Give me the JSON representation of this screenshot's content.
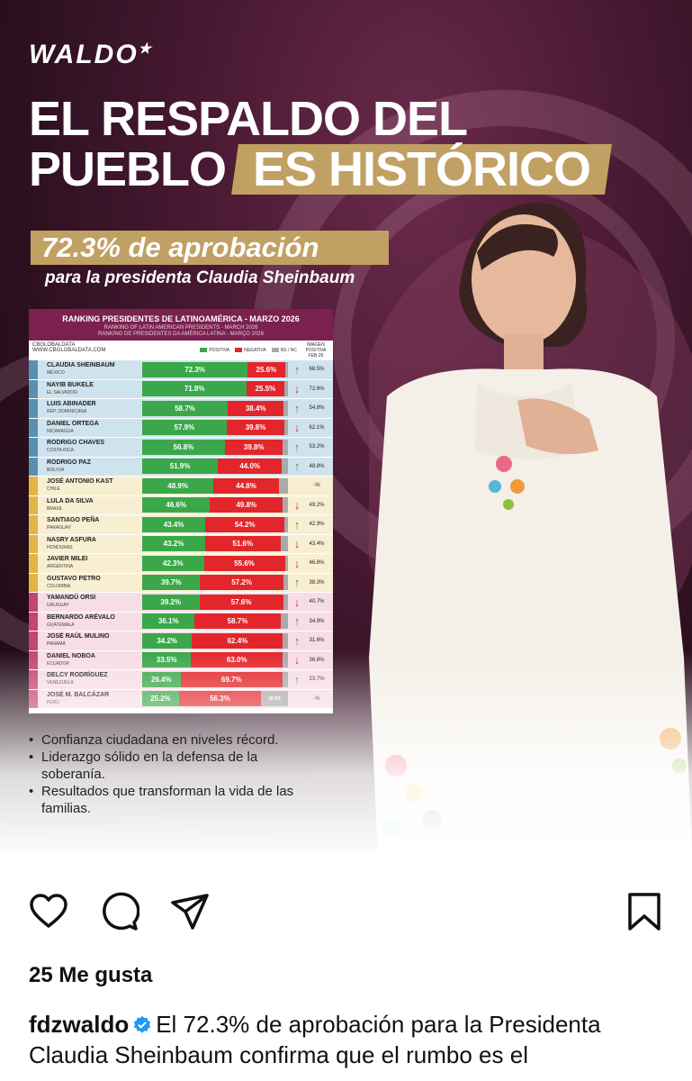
{
  "post": {
    "logo_main": "WALDO",
    "logo_star": "★",
    "headline_line1": "EL RESPALDO DEL",
    "headline_line2a": "PUEBLO",
    "headline_line2b": "ES HISTÓRICO",
    "approval": "72.3% de aprobación",
    "subtitle": "para la presidenta Claudia Sheinbaum"
  },
  "table": {
    "title": "RANKING PRESIDENTES DE LATINOAMÉRICA - MARZO 2026",
    "sub1": "RANKING OF LATIN AMERICAN PRESIDENTS - MARCH 2026",
    "sub2": "RANKING DE PRESIDENTES DA AMÉRICA LATINA - MARÇO 2026",
    "source1": "CBGLOBALDATA",
    "source2": "WWW.CBGLOBALDATA.COM",
    "legend_pos": "POSITIVA",
    "legend_neg": "NEGATIVA",
    "legend_ns": "NS / NC",
    "img_header": "IMAGEN POSITIVA FEB-26",
    "colors": {
      "positive": "#3aa84a",
      "negative": "#e3262b",
      "ns": "#a9a9a9",
      "header": "#7b2150"
    },
    "rows": [
      {
        "name": "CLAUDIA SHEINBAUM",
        "country": "MÉXICO",
        "pos": 72.3,
        "pos_label": "72.3%",
        "neg": 25.6,
        "neg_label": "25.6%",
        "ns": 2.1,
        "trend": "up",
        "prev": "68.5%",
        "group": "best"
      },
      {
        "name": "NAYIB BUKELE",
        "country": "EL SALVADOR",
        "pos": 71.8,
        "pos_label": "71.8%",
        "neg": 25.5,
        "neg_label": "25.5%",
        "ns": 2.7,
        "trend": "down",
        "prev": "72.6%",
        "group": "best"
      },
      {
        "name": "LUIS ABINADER",
        "country": "REP. DOMINICANA",
        "pos": 58.7,
        "pos_label": "58.7%",
        "neg": 38.4,
        "neg_label": "38.4%",
        "ns": 2.9,
        "trend": "up",
        "prev": "54.8%",
        "group": "best"
      },
      {
        "name": "DANIEL ORTEGA",
        "country": "NICARAGUA",
        "pos": 57.9,
        "pos_label": "57.9%",
        "neg": 39.8,
        "neg_label": "39.8%",
        "ns": 2.3,
        "trend": "down",
        "prev": "62.1%",
        "group": "best"
      },
      {
        "name": "RODRIGO CHAVES",
        "country": "COSTA RICA",
        "pos": 56.8,
        "pos_label": "56.8%",
        "neg": 39.8,
        "neg_label": "39.8%",
        "ns": 3.4,
        "trend": "up",
        "prev": "53.2%",
        "group": "best"
      },
      {
        "name": "RODRIGO PAZ",
        "country": "BOLIVIA",
        "pos": 51.9,
        "pos_label": "51.9%",
        "neg": 44.0,
        "neg_label": "44.0%",
        "ns": 4.1,
        "trend": "up",
        "prev": "48.8%",
        "group": "best"
      },
      {
        "name": "JOSÉ ANTONIO KAST",
        "country": "CHILE",
        "pos": 48.9,
        "pos_label": "48.9%",
        "neg": 44.8,
        "neg_label": "44.8%",
        "ns": 6.3,
        "trend": "none",
        "prev": "-%",
        "group": "mid"
      },
      {
        "name": "LULA DA SILVA",
        "country": "BRASIL",
        "pos": 46.6,
        "pos_label": "46.6%",
        "neg": 49.8,
        "neg_label": "49.8%",
        "ns": 3.6,
        "trend": "down",
        "prev": "49.2%",
        "group": "mid"
      },
      {
        "name": "SANTIAGO PEÑA",
        "country": "PARAGUAY",
        "pos": 43.4,
        "pos_label": "43.4%",
        "neg": 54.2,
        "neg_label": "54.2%",
        "ns": 2.4,
        "trend": "up",
        "prev": "42.9%",
        "group": "mid"
      },
      {
        "name": "NASRY ASFURA",
        "country": "HONDURAS",
        "pos": 43.2,
        "pos_label": "43.2%",
        "neg": 51.6,
        "neg_label": "51.6%",
        "ns": 5.2,
        "trend": "down",
        "prev": "43.4%",
        "group": "mid"
      },
      {
        "name": "JAVIER MILEI",
        "country": "ARGENTINA",
        "pos": 42.3,
        "pos_label": "42.3%",
        "neg": 55.6,
        "neg_label": "55.6%",
        "ns": 2.1,
        "trend": "down",
        "prev": "46.8%",
        "group": "mid"
      },
      {
        "name": "GUSTAVO PETRO",
        "country": "COLOMBIA",
        "pos": 39.7,
        "pos_label": "39.7%",
        "neg": 57.2,
        "neg_label": "57.2%",
        "ns": 3.1,
        "trend": "up",
        "prev": "38.3%",
        "group": "mid"
      },
      {
        "name": "YAMANDÚ ORSI",
        "country": "URUGUAY",
        "pos": 39.2,
        "pos_label": "39.2%",
        "neg": 57.6,
        "neg_label": "57.6%",
        "ns": 3.2,
        "trend": "down",
        "prev": "40.7%",
        "group": "worst"
      },
      {
        "name": "BERNARDO ARÉVALO",
        "country": "GUATEMALA",
        "pos": 36.1,
        "pos_label": "36.1%",
        "neg": 58.7,
        "neg_label": "58.7%",
        "ns": 5.2,
        "trend": "up",
        "prev": "34.9%",
        "group": "worst"
      },
      {
        "name": "JOSÉ RAÚL MULINO",
        "country": "PANAMÁ",
        "pos": 34.2,
        "pos_label": "34.2%",
        "neg": 62.4,
        "neg_label": "62.4%",
        "ns": 3.4,
        "trend": "up",
        "prev": "31.6%",
        "group": "worst"
      },
      {
        "name": "DANIEL NOBOA",
        "country": "ECUADOR",
        "pos": 33.5,
        "pos_label": "33.5%",
        "neg": 63.0,
        "neg_label": "63.0%",
        "ns": 3.5,
        "trend": "down",
        "prev": "36.8%",
        "group": "worst"
      },
      {
        "name": "DELCY RODRÍGUEZ",
        "country": "VENEZUELA",
        "pos": 26.4,
        "pos_label": "26.4%",
        "neg": 69.7,
        "neg_label": "69.7%",
        "ns": 3.9,
        "trend": "up",
        "prev": "23.7%",
        "group": "worst"
      },
      {
        "name": "JOSÉ M. BALCÁZAR",
        "country": "PERÚ",
        "pos": 25.2,
        "pos_label": "25.2%",
        "neg": 56.3,
        "neg_label": "56.3%",
        "ns": 18.5,
        "ns_label": "18.5%",
        "trend": "none",
        "prev": "-%",
        "group": "worst"
      }
    ]
  },
  "bullets": [
    "Confianza ciudadana en niveles récord.",
    "Liderazgo sólido en la defensa de la soberanía.",
    "Resultados que transforman la vida de las familias."
  ],
  "likes": "25 Me gusta",
  "caption": {
    "user": "fdzwaldo",
    "text": "El 72.3% de aprobación para la Presidenta Claudia Sheinbaum confirma que el rumbo es el"
  },
  "icons": [
    "heart-icon",
    "comment-icon",
    "share-icon",
    "bookmark-icon",
    "verified-icon"
  ]
}
